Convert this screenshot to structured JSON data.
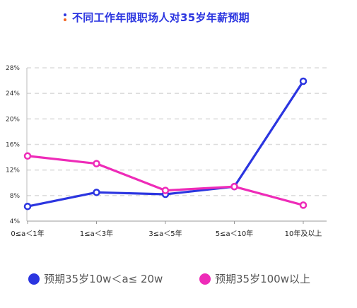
{
  "title": "不同工作年限职场人对35岁年薪预期",
  "colors": {
    "title": "#2b35e0",
    "accent_dot": "#f26522",
    "grid": "#dddddd"
  },
  "chart_data": {
    "type": "line",
    "categories": [
      "0≤a＜1年",
      "1≤a＜3年",
      "3≤a＜5年",
      "5≤a＜10年",
      "10年及以上"
    ],
    "ylim": [
      4,
      28
    ],
    "yticks": [
      "4%",
      "8%",
      "12%",
      "16%",
      "20%",
      "24%",
      "28%"
    ],
    "ytick_values": [
      4,
      8,
      12,
      16,
      20,
      24,
      28
    ],
    "grid": true,
    "legend_position": "bottom",
    "series": [
      {
        "name": "预期35岁10w＜a≤ 20w",
        "color": "#2b35e0",
        "values": [
          6.3,
          8.5,
          8.2,
          9.4,
          25.9
        ]
      },
      {
        "name": "预期35岁100w以上",
        "color": "#ee2bb8",
        "values": [
          14.2,
          13.0,
          8.8,
          9.4,
          6.5
        ]
      }
    ]
  }
}
